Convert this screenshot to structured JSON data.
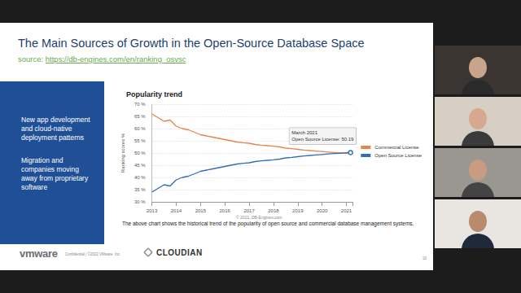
{
  "slide": {
    "title": "The Main Sources of Growth in the Open-Source Database Space",
    "source_prefix": "source:",
    "source_url": "https://db-engines.com/en/ranking_osvsc",
    "panel_items": [
      "New app development and cloud-native deployment patterns",
      "Migration and companies moving away from proprietary software"
    ],
    "chart_credit": "© 2021, DB-Engines.com",
    "caption": "The above chart shows the historical trend of the popularity of open source and commercial database management systems.",
    "footer": {
      "logo_left": "vmware",
      "confidential": "Confidential | ©2022 VMware, Inc.",
      "logo_right": "CLOUDIAN",
      "page": "10"
    }
  },
  "chart_data": {
    "type": "line",
    "title": "Popularity trend",
    "y_label": "Ranking scores %",
    "x": [
      2013,
      2013.25,
      2013.5,
      2013.75,
      2014,
      2014.25,
      2014.5,
      2014.75,
      2015,
      2015.25,
      2015.5,
      2015.75,
      2016,
      2016.25,
      2016.5,
      2016.75,
      2017,
      2017.25,
      2017.5,
      2017.75,
      2018,
      2018.25,
      2018.5,
      2018.75,
      2019,
      2019.25,
      2019.5,
      2019.75,
      2020,
      2020.25,
      2020.5,
      2020.75,
      2021,
      2021.17
    ],
    "series": [
      {
        "name": "Commercial License",
        "color": "#e8834a",
        "values": [
          66,
          64.5,
          63,
          63.5,
          61,
          60,
          59.5,
          58.5,
          57.5,
          57,
          56.5,
          56,
          55.5,
          55,
          54.5,
          54.2,
          54,
          53.5,
          53.2,
          53,
          52.8,
          52.5,
          52,
          51.8,
          51.5,
          51.2,
          51,
          50.8,
          50.6,
          50.4,
          50.2,
          50.1,
          49.9,
          49.81
        ]
      },
      {
        "name": "Open Source License",
        "color": "#2f6fba",
        "values": [
          34,
          35.5,
          37,
          36.5,
          39,
          40,
          40.5,
          41.5,
          42.5,
          43,
          43.5,
          44,
          44.5,
          45,
          45.5,
          45.8,
          46,
          46.5,
          46.8,
          47,
          47.2,
          47.5,
          48,
          48.2,
          48.5,
          48.8,
          49,
          49.2,
          49.4,
          49.6,
          49.8,
          49.9,
          50.1,
          50.19
        ]
      }
    ],
    "xlim": [
      2013,
      2021.25
    ],
    "xticks": [
      2013,
      2014,
      2015,
      2016,
      2017,
      2018,
      2019,
      2020,
      2021
    ],
    "ylim": [
      30,
      70
    ],
    "yticks": [
      {
        "value": 30,
        "label": "30 %"
      },
      {
        "value": 35,
        "label": "35 %"
      },
      {
        "value": 40,
        "label": "40 %"
      },
      {
        "value": 45,
        "label": "45 %"
      },
      {
        "value": 50,
        "label": "50 %"
      },
      {
        "value": 55,
        "label": "55 %"
      },
      {
        "value": 60,
        "label": "60 %"
      },
      {
        "value": 65,
        "label": "65 %"
      },
      {
        "value": 70,
        "label": "70 %"
      }
    ],
    "grid": true,
    "legend": "right",
    "annotations": [
      {
        "x": 2021.17,
        "y": 50.19,
        "text": [
          "March 2021",
          "Open Source License: 50.19"
        ]
      }
    ]
  }
}
